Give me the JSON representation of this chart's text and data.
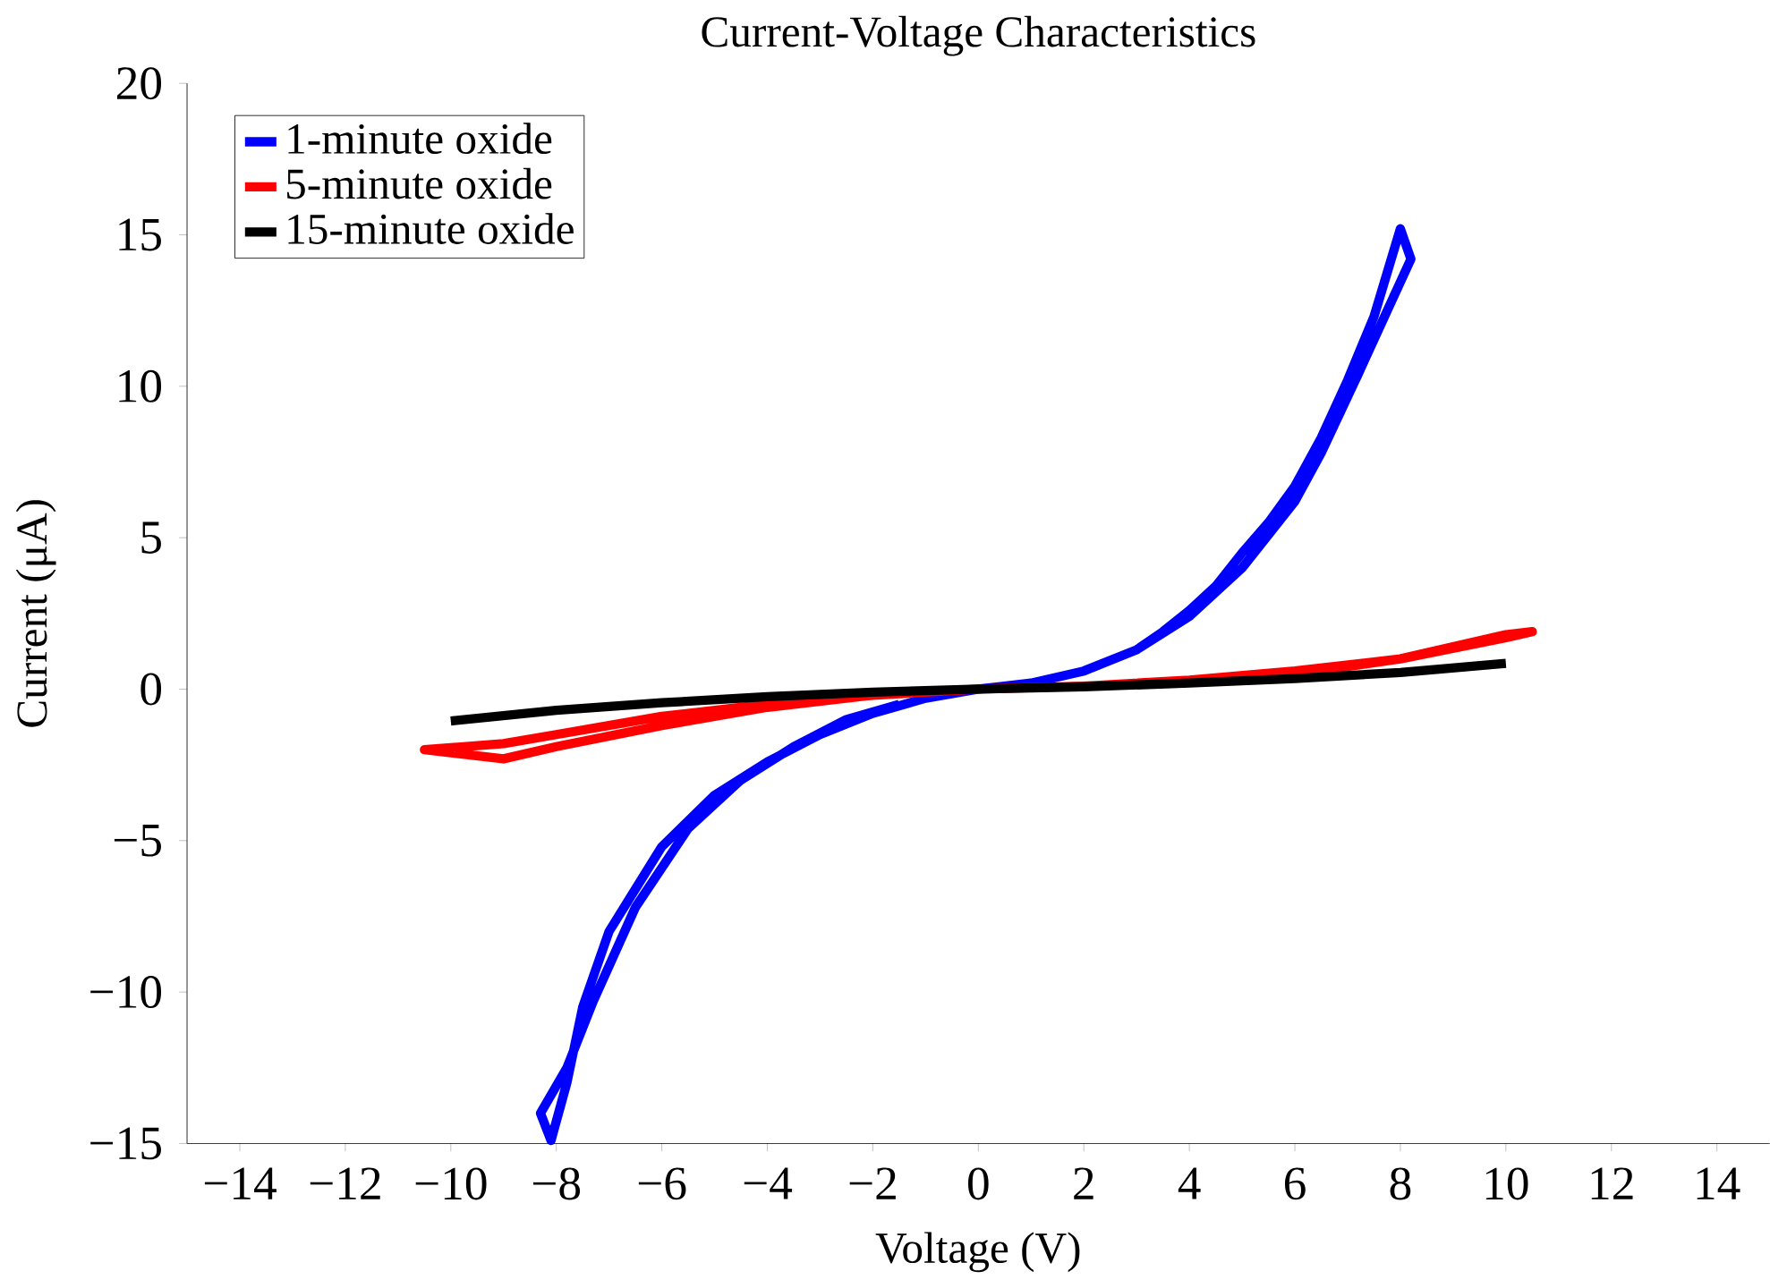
{
  "chart_data": {
    "type": "line",
    "title": "Current-Voltage Characteristics",
    "xlabel": "Voltage (V)",
    "ylabel": "Current (μA)",
    "xlim": [
      -15,
      15
    ],
    "ylim": [
      -15,
      20
    ],
    "xticks": [
      {
        "value": -14,
        "label": "−14"
      },
      {
        "value": -12,
        "label": "−12"
      },
      {
        "value": -10,
        "label": "−10"
      },
      {
        "value": -8,
        "label": "−8"
      },
      {
        "value": -6,
        "label": "−6"
      },
      {
        "value": -4,
        "label": "−4"
      },
      {
        "value": -2,
        "label": "−2"
      },
      0,
      2,
      4,
      6,
      8,
      10,
      12,
      14
    ],
    "yticks": [
      {
        "value": -15,
        "label": "−15"
      },
      {
        "value": -10,
        "label": "−10"
      },
      {
        "value": -5,
        "label": "−5"
      },
      0,
      5,
      10,
      15,
      20
    ],
    "grid": false,
    "legend": "top left",
    "marker": "none",
    "line_style": "solid",
    "series": [
      {
        "name": "1-minute oxide",
        "color": "#0000ff",
        "x": [
          0,
          1,
          2,
          3,
          3.5,
          4,
          4.5,
          5,
          5.5,
          6,
          6.5,
          7,
          7.5,
          8,
          8.2,
          7.7,
          7.2,
          6.5,
          6,
          5,
          4,
          3,
          2,
          1,
          0,
          -1,
          -2,
          -3,
          -4,
          -5,
          -6,
          -7,
          -7.5,
          -7.8,
          -8.1,
          -8.3,
          -7.8,
          -7.3,
          -6.5,
          -5.5,
          -4.5,
          -3.5,
          -2.5,
          -1.5
        ],
        "values": [
          0,
          0.2,
          0.6,
          1.3,
          1.9,
          2.6,
          3.4,
          4.5,
          5.5,
          6.7,
          8.3,
          10.2,
          12.3,
          15.2,
          14.2,
          12.3,
          10.4,
          7.8,
          6.2,
          4.0,
          2.4,
          1.3,
          0.6,
          0.2,
          0,
          -0.3,
          -0.8,
          -1.5,
          -2.4,
          -3.5,
          -5.2,
          -8,
          -10.5,
          -13,
          -14.9,
          -14,
          -12.5,
          -10.3,
          -7.2,
          -4.6,
          -3,
          -1.9,
          -1.0,
          -0.5
        ]
      },
      {
        "name": "5-minute oxide",
        "color": "#ff0000",
        "x": [
          0,
          2,
          4,
          6,
          8,
          9,
          10,
          10.5,
          10,
          8,
          6,
          4,
          2,
          0,
          -2,
          -4,
          -6,
          -8,
          -9,
          -10.5,
          -9,
          -8,
          -6,
          -4,
          -2
        ],
        "values": [
          0,
          0.1,
          0.3,
          0.6,
          1.0,
          1.4,
          1.8,
          1.9,
          1.7,
          1.0,
          0.5,
          0.25,
          0.1,
          0,
          -0.2,
          -0.5,
          -0.9,
          -1.5,
          -1.8,
          -2.0,
          -2.3,
          -1.9,
          -1.2,
          -0.6,
          -0.2
        ]
      },
      {
        "name": "15-minute oxide",
        "color": "#000000",
        "x": [
          -10,
          -8,
          -6,
          -4,
          -2,
          0,
          2,
          4,
          6,
          8,
          10
        ],
        "values": [
          -1.05,
          -0.7,
          -0.45,
          -0.25,
          -0.1,
          0,
          0.08,
          0.2,
          0.35,
          0.55,
          0.85
        ]
      }
    ]
  }
}
